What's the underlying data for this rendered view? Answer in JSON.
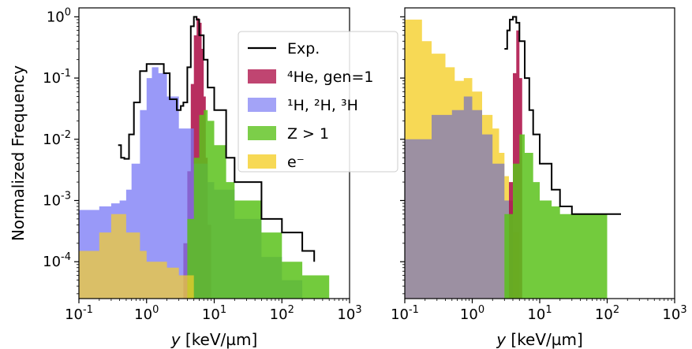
{
  "chart_data": [
    {
      "type": "area",
      "panel": "left",
      "xlabel": "y [keV/µm]",
      "ylabel": "Normalized Frequency",
      "xscale": "log",
      "yscale": "log",
      "xlim": [
        0.1,
        1000
      ],
      "ylim": [
        2.5e-05,
        1.4
      ],
      "x_ticks": [
        "10⁻¹",
        "10⁰",
        "10¹",
        "10²",
        "10³"
      ],
      "y_ticks": [
        "10⁻⁴",
        "10⁻³",
        "10⁻²",
        "10⁻¹",
        "10⁰"
      ],
      "legend": {
        "placement": "top-right",
        "entries": [
          {
            "label": "Exp.",
            "color": "#000000",
            "kind": "line"
          },
          {
            "label": "⁴He, gen=1",
            "color": "#b0174e",
            "kind": "patch"
          },
          {
            "label": "¹H, ²H, ³H",
            "color": "#8c8cf5",
            "kind": "patch"
          },
          {
            "label": "Z > 1",
            "color": "#5bc21b",
            "kind": "patch"
          },
          {
            "label": "e⁻",
            "color": "#f5cf2a",
            "kind": "patch"
          }
        ]
      },
      "series": [
        {
          "name": "⁴He, gen=1",
          "color": "#b0174e",
          "opacity": 0.9,
          "x": [
            3.5,
            4.0,
            4.5,
            5.0,
            5.5,
            6.0,
            6.5,
            7.0,
            7.5,
            8.0,
            9.0
          ],
          "y": [
            0.0002,
            0.003,
            0.08,
            0.5,
            0.95,
            0.8,
            0.3,
            0.05,
            0.005,
            0.0004,
            0.0002
          ]
        },
        {
          "name": "¹H, ²H, ³H",
          "color": "#7777f5",
          "opacity": 0.75,
          "x": [
            0.1,
            0.2,
            0.3,
            0.4,
            0.5,
            0.6,
            0.8,
            1.0,
            1.2,
            1.5,
            2.0,
            3.0,
            5.0,
            8.0,
            10,
            20,
            50,
            100,
            200
          ],
          "y": [
            0.0007,
            0.0008,
            0.0009,
            0.001,
            0.0015,
            0.004,
            0.03,
            0.1,
            0.15,
            0.12,
            0.05,
            0.015,
            0.004,
            0.002,
            0.0015,
            0.0005,
            0.00012,
            5e-05,
            3e-05
          ]
        },
        {
          "name": "Z > 1",
          "color": "#5bc21b",
          "opacity": 0.85,
          "x": [
            4.0,
            5.0,
            6.0,
            7.0,
            8.0,
            10,
            15,
            20,
            50,
            100,
            200,
            500
          ],
          "y": [
            0.0005,
            0.005,
            0.025,
            0.03,
            0.02,
            0.008,
            0.002,
            0.001,
            0.0003,
            0.0001,
            6e-05,
            3e-05
          ]
        },
        {
          "name": "e⁻",
          "color": "#f5cf2a",
          "opacity": 0.7,
          "x": [
            0.1,
            0.2,
            0.3,
            0.5,
            0.8,
            1.0,
            2.0,
            3.0,
            5.0
          ],
          "y": [
            0.00015,
            0.0003,
            0.0006,
            0.0003,
            0.00015,
            0.0001,
            8e-05,
            6e-05,
            4e-05
          ]
        },
        {
          "name": "Exp.",
          "color": "#000000",
          "kind": "line",
          "x": [
            0.38,
            0.42,
            0.47,
            0.55,
            0.65,
            0.8,
            1.0,
            1.3,
            1.8,
            2.2,
            2.8,
            3.2,
            3.5,
            4.0,
            4.5,
            5.0,
            5.5,
            6.0,
            7.0,
            8.0,
            10,
            15,
            20,
            50,
            100,
            200,
            300
          ],
          "y": [
            0.008,
            0.005,
            0.0048,
            0.012,
            0.04,
            0.13,
            0.17,
            0.17,
            0.12,
            0.045,
            0.03,
            0.035,
            0.04,
            0.15,
            0.7,
            1.0,
            0.9,
            0.5,
            0.2,
            0.07,
            0.03,
            0.005,
            0.002,
            0.0005,
            0.0003,
            0.00015,
            0.0001
          ]
        }
      ]
    },
    {
      "type": "area",
      "panel": "right",
      "xlabel": "y [keV/µm]",
      "xscale": "log",
      "yscale": "log",
      "xlim": [
        0.1,
        1000
      ],
      "ylim": [
        2.5e-05,
        1.4
      ],
      "x_ticks": [
        "10⁻¹",
        "10⁰",
        "10¹",
        "10²",
        "10³"
      ],
      "series": [
        {
          "name": "e⁻",
          "color": "#f5cf2a",
          "opacity": 0.8,
          "x": [
            0.1,
            0.18,
            0.25,
            0.4,
            0.55,
            0.75,
            1.0,
            1.4,
            2.0,
            2.5,
            3.0,
            3.5,
            4.0,
            5.0
          ],
          "y": [
            0.9,
            0.4,
            0.25,
            0.15,
            0.09,
            0.1,
            0.06,
            0.025,
            0.015,
            0.006,
            0.0025,
            0.001,
            0.0003,
            3e-05
          ]
        },
        {
          "name": "¹H, ²H, ³H",
          "color": "#5f5fd6",
          "opacity": 0.6,
          "x": [
            0.1,
            0.25,
            0.5,
            0.75,
            1.0,
            1.4,
            2.0,
            3.0,
            4.0
          ],
          "y": [
            0.01,
            0.025,
            0.03,
            0.05,
            0.03,
            0.012,
            0.004,
            0.001,
            0.0003
          ]
        },
        {
          "name": "⁴He, gen=1",
          "color": "#b0174e",
          "opacity": 0.9,
          "x": [
            3.5,
            4.0,
            4.5,
            5.0,
            5.5
          ],
          "y": [
            0.002,
            0.12,
            0.6,
            0.1,
            0.002
          ]
        },
        {
          "name": "Z > 1",
          "color": "#5bc21b",
          "opacity": 0.85,
          "x": [
            3.0,
            4.0,
            5.0,
            6.0,
            8.0,
            10,
            15,
            20,
            50,
            100
          ],
          "y": [
            0.0006,
            0.004,
            0.012,
            0.006,
            0.002,
            0.001,
            0.0008,
            0.0006,
            0.0006,
            0.0006
          ]
        },
        {
          "name": "Exp.",
          "color": "#000000",
          "kind": "line",
          "x": [
            3.0,
            3.3,
            3.6,
            4.0,
            4.5,
            5.0,
            6.0,
            7.0,
            8.0,
            10,
            15,
            20,
            30,
            50,
            100,
            160
          ],
          "y": [
            0.3,
            0.6,
            0.9,
            1.0,
            0.8,
            0.4,
            0.1,
            0.03,
            0.012,
            0.004,
            0.0015,
            0.0008,
            0.0006,
            0.0006,
            0.0006,
            0.0006
          ]
        }
      ]
    }
  ]
}
